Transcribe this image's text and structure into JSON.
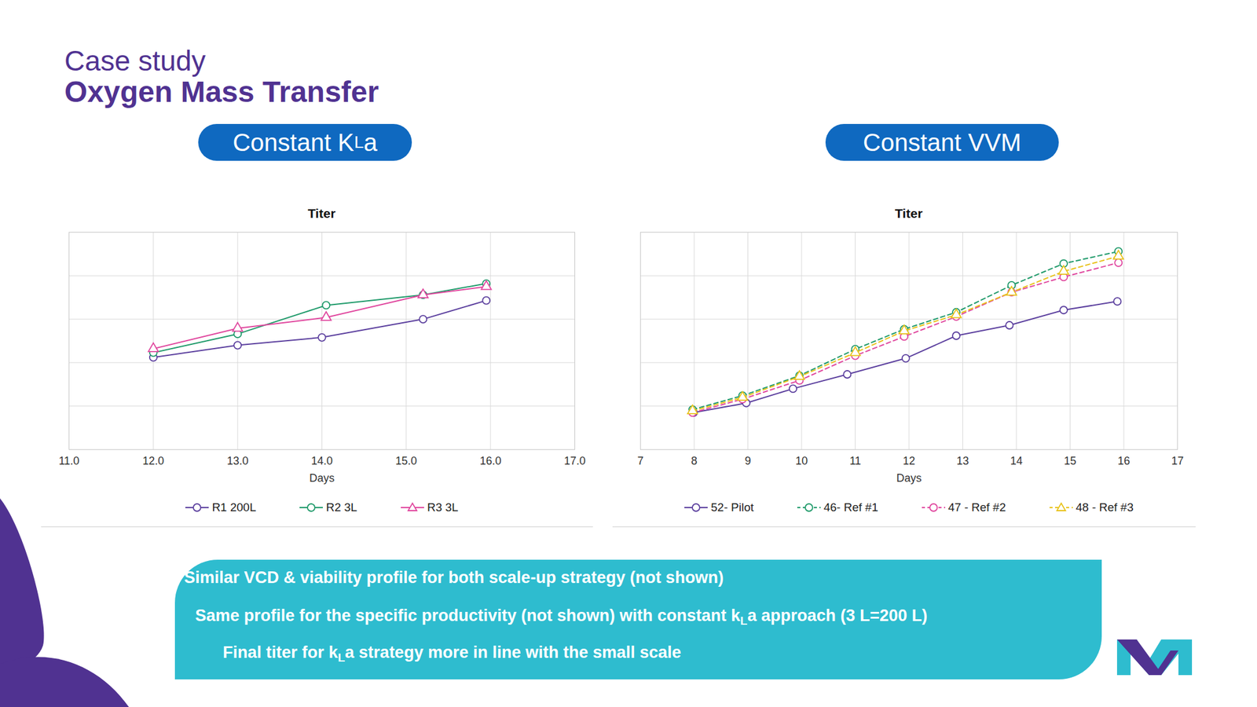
{
  "slide": {
    "kicker": "Case study",
    "title": "Oxygen Mass Transfer",
    "panels": [
      [
        {
          "text": "Constant K"
        },
        {
          "text": "L",
          "sub": true
        },
        {
          "text": "a"
        }
      ],
      [
        {
          "text": "Constant VVM"
        }
      ]
    ],
    "notes": [
      [
        {
          "text": "Similar VCD & viability profile for both scale-up strategy (not shown)"
        }
      ],
      [
        {
          "text": "Same profile for the specific productivity (not shown) with constant k"
        },
        {
          "text": "L",
          "sub": true
        },
        {
          "text": "a approach (3 L=200 L)"
        }
      ],
      [
        {
          "text": "Final titer for k"
        },
        {
          "text": "L",
          "sub": true
        },
        {
          "text": "a strategy more in line with the small scale"
        }
      ]
    ]
  },
  "chart_data": [
    {
      "type": "line",
      "title": "Titer",
      "x_label": "Days",
      "xlim": [
        11,
        17
      ],
      "xticks": [
        11,
        12,
        13,
        14,
        15,
        16,
        17
      ],
      "ylim": [
        0,
        5
      ],
      "yticks": [
        0,
        1,
        2,
        3,
        4,
        5
      ],
      "grid": true,
      "tick_labels": "x",
      "legend": "bottom",
      "series": [
        {
          "name": "R1 200L",
          "color": "#5b3f9e",
          "marker": "circle",
          "line_style": "solid",
          "x": [
            12,
            13,
            14,
            15.2,
            15.95
          ],
          "values": [
            2.12,
            2.4,
            2.58,
            3.0,
            3.43
          ]
        },
        {
          "name": "R2 3L",
          "color": "#1f9a6a",
          "marker": "circle",
          "line_style": "solid",
          "x": [
            12,
            13,
            14.05,
            15.2,
            15.95
          ],
          "values": [
            2.23,
            2.66,
            3.32,
            3.56,
            3.82
          ]
        },
        {
          "name": "R3 3L",
          "color": "#e0479e",
          "marker": "triangle",
          "line_style": "solid",
          "x": [
            12,
            13,
            14.05,
            15.2,
            15.95
          ],
          "values": [
            2.32,
            2.79,
            3.04,
            3.56,
            3.75
          ]
        }
      ]
    },
    {
      "type": "line",
      "title": "Titer",
      "x_label": "Days",
      "xlim": [
        7,
        17
      ],
      "xticks": [
        7,
        8,
        9,
        10,
        11,
        12,
        13,
        14,
        15,
        16,
        17
      ],
      "ylim": [
        0,
        5
      ],
      "yticks": [
        0,
        1,
        2,
        3,
        4,
        5
      ],
      "grid": true,
      "tick_labels": "x",
      "legend": "bottom",
      "series": [
        {
          "name": "52- Pilot",
          "color": "#5b3f9e",
          "marker": "circle",
          "line_style": "solid",
          "x": [
            7.99,
            8.97,
            9.84,
            10.85,
            11.94,
            12.88,
            13.87,
            14.88,
            15.88
          ],
          "values": [
            0.85,
            1.07,
            1.4,
            1.73,
            2.1,
            2.62,
            2.86,
            3.21,
            3.41
          ]
        },
        {
          "name": "46- Ref #1",
          "color": "#1f9a6a",
          "marker": "circle",
          "line_style": "dashed",
          "x": [
            7.97,
            8.9,
            9.96,
            11.0,
            11.91,
            12.88,
            13.91,
            14.88,
            15.9
          ],
          "values": [
            0.92,
            1.24,
            1.7,
            2.31,
            2.77,
            3.16,
            3.78,
            4.28,
            4.56
          ]
        },
        {
          "name": "47 - Ref #2",
          "color": "#e0479e",
          "marker": "circle",
          "line_style": "dashed",
          "x": [
            7.97,
            8.9,
            9.96,
            11.0,
            11.91,
            12.88,
            13.91,
            14.88,
            15.9
          ],
          "values": [
            0.85,
            1.16,
            1.59,
            2.16,
            2.6,
            3.06,
            3.62,
            3.97,
            4.3
          ]
        },
        {
          "name": "48 - Ref #3",
          "color": "#e8c21a",
          "marker": "triangle",
          "line_style": "dashed",
          "x": [
            7.97,
            8.9,
            9.96,
            11.0,
            11.91,
            12.88,
            13.91,
            14.88,
            15.9
          ],
          "values": [
            0.89,
            1.2,
            1.68,
            2.23,
            2.73,
            3.1,
            3.62,
            4.1,
            4.45
          ]
        }
      ]
    }
  ]
}
